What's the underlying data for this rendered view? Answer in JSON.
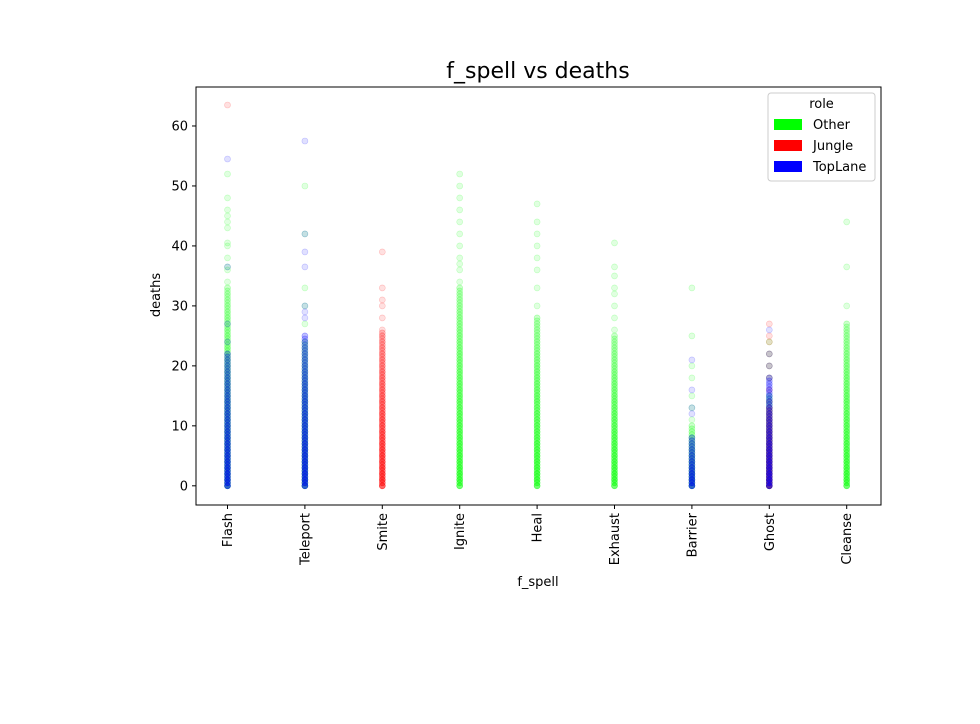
{
  "chart_data": {
    "type": "scatter",
    "title": "f_spell vs deaths",
    "xlabel": "f_spell",
    "ylabel": "deaths",
    "categories": [
      "Flash",
      "Teleport",
      "Smite",
      "Ignite",
      "Heal",
      "Exhaust",
      "Barrier",
      "Ghost",
      "Cleanse"
    ],
    "ylim": [
      -3.2,
      66.5
    ],
    "yticks": [
      0,
      10,
      20,
      30,
      40,
      50,
      60
    ],
    "legend": {
      "title": "role",
      "position": "top-right",
      "entries": [
        {
          "label": "Other",
          "color": "#00ff00"
        },
        {
          "label": "Jungle",
          "color": "#ff0000"
        },
        {
          "label": "TopLane",
          "color": "#0000ff"
        }
      ]
    },
    "series": [
      {
        "name": "Other",
        "color": "#00ff00",
        "points": [
          {
            "x": "Flash",
            "dense_max": 33,
            "tail": [
              34,
              36,
              36.5,
              38,
              40,
              40.5,
              43,
              44,
              45,
              46,
              48,
              52
            ]
          },
          {
            "x": "Teleport",
            "dense_max": 24,
            "tail": [
              27,
              30,
              33,
              42,
              50
            ]
          },
          {
            "x": "Ignite",
            "dense_max": 33,
            "tail": [
              34,
              36,
              37,
              38,
              40,
              42,
              44,
              46,
              48,
              50,
              52
            ]
          },
          {
            "x": "Heal",
            "dense_max": 28,
            "tail": [
              30,
              33,
              36,
              38,
              40,
              42,
              44,
              47
            ]
          },
          {
            "x": "Exhaust",
            "dense_max": 25,
            "tail": [
              26,
              28,
              30,
              32,
              33,
              35,
              36.5,
              40.5
            ]
          },
          {
            "x": "Barrier",
            "dense_max": 10,
            "tail": [
              11,
              13,
              15,
              18,
              20,
              25,
              33
            ]
          },
          {
            "x": "Ghost",
            "dense_max": 15,
            "tail": [
              18,
              20,
              22,
              24
            ]
          },
          {
            "x": "Cleanse",
            "dense_max": 27,
            "tail": [
              30,
              36.5,
              44
            ]
          }
        ]
      },
      {
        "name": "Jungle",
        "color": "#ff0000",
        "points": [
          {
            "x": "Flash",
            "dense_max": 0,
            "tail": [
              63.5
            ]
          },
          {
            "x": "Smite",
            "dense_max": 25.5,
            "tail": [
              26,
              28,
              30,
              31,
              33,
              39
            ]
          },
          {
            "x": "Ghost",
            "dense_max": 13,
            "tail": [
              14,
              16,
              18,
              20,
              22,
              24,
              25,
              27
            ]
          }
        ]
      },
      {
        "name": "TopLane",
        "color": "#0000ff",
        "points": [
          {
            "x": "Flash",
            "dense_max": 22,
            "tail": [
              24,
              27,
              36.5,
              54.5
            ]
          },
          {
            "x": "Teleport",
            "dense_max": 25,
            "tail": [
              28,
              29,
              30,
              36.5,
              39,
              42,
              57.5
            ]
          },
          {
            "x": "Barrier",
            "dense_max": 8,
            "tail": [
              12,
              13,
              16,
              21
            ]
          },
          {
            "x": "Ghost",
            "dense_max": 18,
            "tail": [
              20,
              22,
              26
            ]
          }
        ]
      }
    ]
  }
}
